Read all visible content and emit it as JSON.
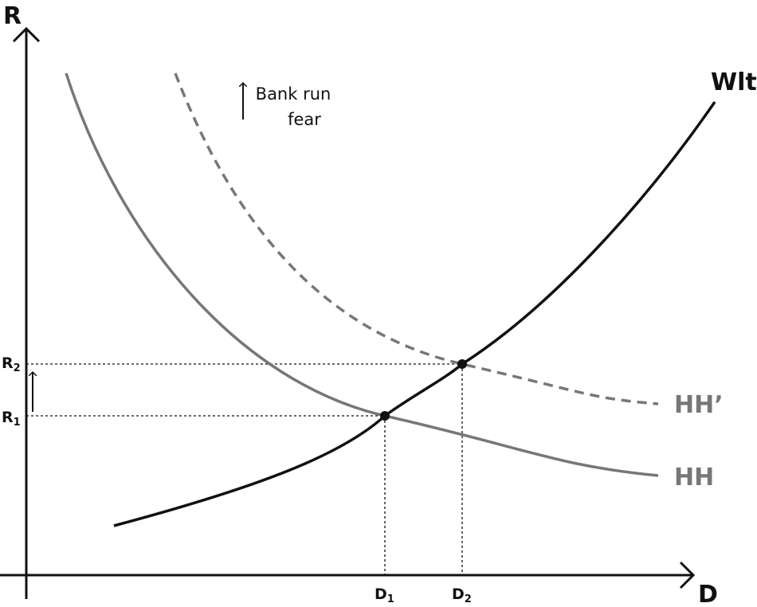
{
  "axes": {
    "y_label": "R",
    "x_label": "D"
  },
  "curves": {
    "supply": "Wlt",
    "demand_new": "HH’",
    "demand": "HH"
  },
  "levels": {
    "r1": {
      "main": "R",
      "sub": "1"
    },
    "r2": {
      "main": "R",
      "sub": "2"
    },
    "d1": {
      "main": "D",
      "sub": "1"
    },
    "d2": {
      "main": "D",
      "sub": "2"
    }
  },
  "annotation": {
    "line1": "Bank run",
    "line2": "fear"
  }
}
